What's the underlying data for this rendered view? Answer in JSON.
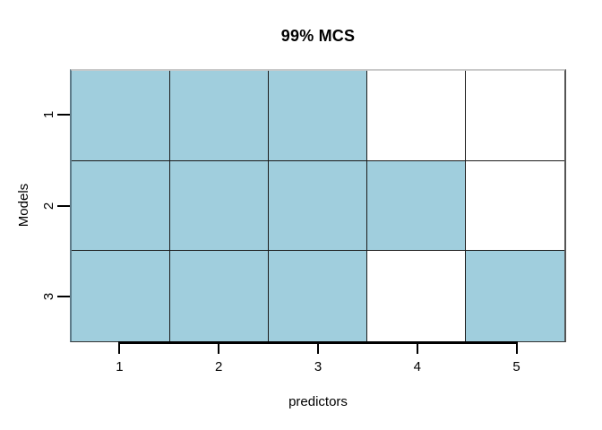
{
  "chart_data": {
    "type": "heatmap",
    "title": "99% MCS",
    "xlabel": "predictors",
    "ylabel": "Models",
    "x_ticks": [
      "1",
      "2",
      "3",
      "4",
      "5"
    ],
    "y_ticks": [
      "1",
      "2",
      "3"
    ],
    "matrix": [
      [
        1,
        1,
        1,
        0,
        0
      ],
      [
        1,
        1,
        1,
        1,
        0
      ],
      [
        1,
        1,
        1,
        0,
        1
      ]
    ],
    "colors": {
      "included": "#A0CEDD",
      "excluded": "#FFFFFF",
      "grid_line": "#1b1b1b",
      "axis_line": "#000000"
    },
    "legend": "none",
    "grid": "cell-borders"
  }
}
